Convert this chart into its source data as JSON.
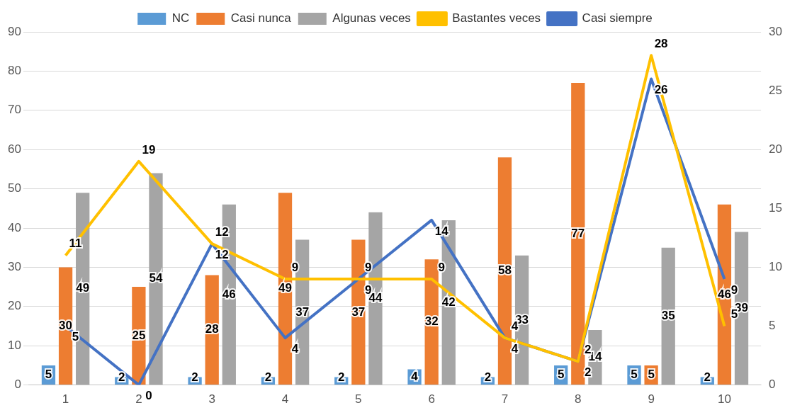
{
  "chart_data": {
    "type": "bar",
    "categories": [
      "1",
      "2",
      "3",
      "4",
      "5",
      "6",
      "7",
      "8",
      "9",
      "10"
    ],
    "series": [
      {
        "name": "NC",
        "color": "#5b9bd5",
        "values": [
          5,
          2,
          2,
          2,
          2,
          4,
          2,
          5,
          5,
          2
        ]
      },
      {
        "name": "Casi nunca",
        "color": "#ed7d31",
        "values": [
          30,
          25,
          28,
          49,
          37,
          32,
          58,
          77,
          5,
          46
        ]
      },
      {
        "name": "Algunas veces",
        "color": "#a5a5a5",
        "values": [
          49,
          54,
          46,
          37,
          44,
          42,
          33,
          14,
          35,
          39
        ]
      },
      {
        "name": "Bastantes veces",
        "color": "#ffc000",
        "type": "line",
        "axis": "y2",
        "values": [
          11,
          19,
          12,
          9,
          9,
          9,
          4,
          2,
          28,
          5
        ]
      },
      {
        "name": "Casi siempre",
        "color": "#4472c4",
        "type": "line",
        "axis": "y2",
        "values": [
          5,
          0,
          12,
          4,
          9,
          14,
          4,
          2,
          26,
          9
        ]
      }
    ],
    "ylim": [
      0,
      90
    ],
    "yticks": [
      0,
      10,
      20,
      30,
      40,
      50,
      60,
      70,
      80,
      90
    ],
    "y2lim": [
      0,
      30
    ],
    "y2ticks": [
      0,
      5,
      10,
      15,
      20,
      25,
      30
    ],
    "grid": "y",
    "legend": "top",
    "marker": "none",
    "data_labels": true
  }
}
